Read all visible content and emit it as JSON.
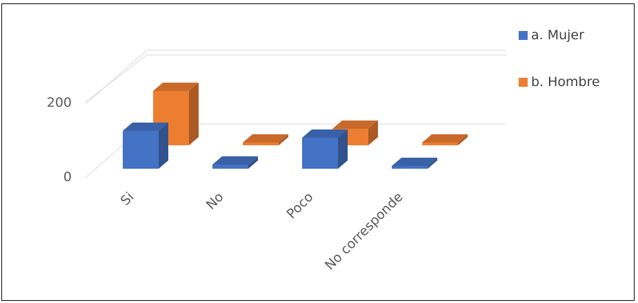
{
  "chart_data": {
    "type": "bar",
    "categories": [
      "Si",
      "No",
      "Poco",
      "No corresponde"
    ],
    "series": [
      {
        "name": "a. Mujer",
        "values": [
          110,
          12,
          90,
          3
        ],
        "color": "#4472C4"
      },
      {
        "name": "b. Hombre",
        "values": [
          158,
          8,
          48,
          4
        ],
        "color": "#ED7D31"
      }
    ],
    "yticks": [
      0,
      200
    ],
    "ylim": [
      0,
      300
    ],
    "grid": true,
    "legend_position": "right"
  }
}
